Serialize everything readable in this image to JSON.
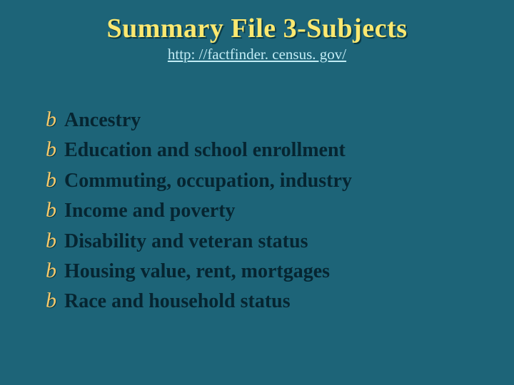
{
  "background_color": "#1d6478",
  "title": {
    "text": "Summary File 3-Subjects",
    "color": "#fbe870",
    "shadow_color": "#0a3a45",
    "font_size": 38,
    "font_family": "Comic Sans MS"
  },
  "subtitle": {
    "text": "http: //factfinder. census. gov/",
    "url": "http://factfinder.census.gov/",
    "color": "#c2ecf5",
    "font_size": 21,
    "underline": true
  },
  "bullet": {
    "glyph": "b",
    "color": "#f6c96a",
    "font_size": 30,
    "font_family": "Brush Script MT"
  },
  "items_style": {
    "color": "#062531",
    "font_size": 28,
    "font_weight": "bold"
  },
  "items": [
    {
      "text": "Ancestry"
    },
    {
      "text": "Education and school enrollment"
    },
    {
      "text": "Commuting, occupation, industry"
    },
    {
      "text": "Income and poverty"
    },
    {
      "text": "Disability and veteran status"
    },
    {
      "text": "Housing value, rent, mortgages"
    },
    {
      "text": "Race and household status"
    }
  ]
}
